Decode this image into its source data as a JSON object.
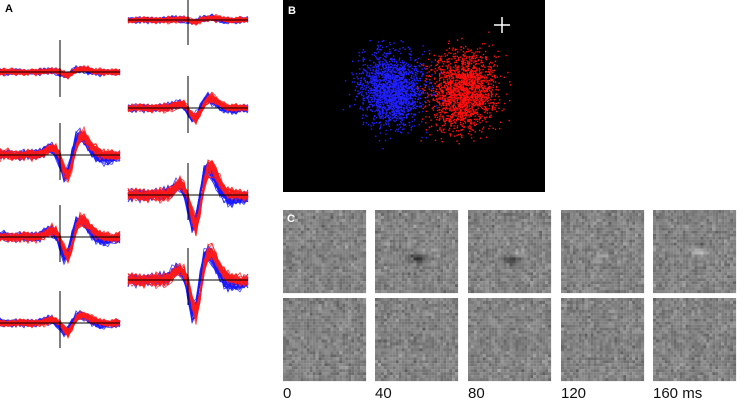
{
  "panels": {
    "a": {
      "label": "A"
    },
    "b": {
      "label": "B"
    },
    "c": {
      "label": "C",
      "time_labels": [
        "0",
        "40",
        "80",
        "120",
        "160 ms"
      ]
    }
  }
}
